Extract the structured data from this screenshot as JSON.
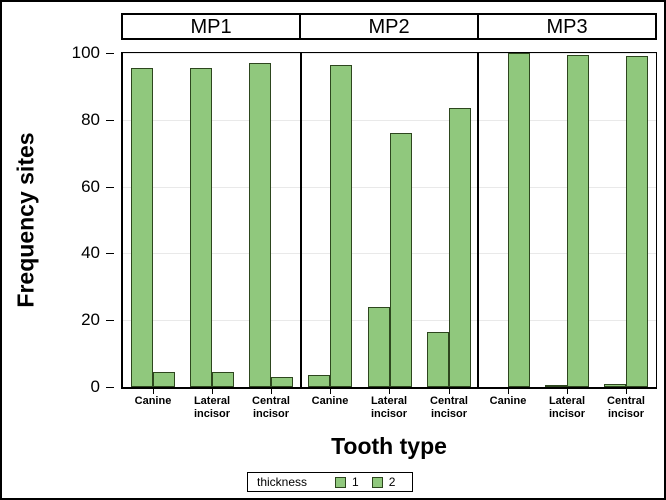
{
  "chart_data": {
    "type": "bar",
    "title": "",
    "xlabel": "Tooth type",
    "ylabel": "Frequency sites",
    "ylim": [
      0,
      100
    ],
    "yticks": [
      0,
      20,
      40,
      60,
      80,
      100
    ],
    "grid": true,
    "legend": {
      "title": "thickness",
      "entries": [
        "1",
        "2"
      ],
      "position": "bottom"
    },
    "categories": [
      "Canine",
      "Lateral incisor",
      "Central incisor"
    ],
    "panels": [
      {
        "label": "MP1",
        "series": [
          {
            "name": "1",
            "values": [
              95.5,
              95.5,
              97
            ]
          },
          {
            "name": "2",
            "values": [
              4.5,
              4.5,
              3
            ]
          }
        ]
      },
      {
        "label": "MP2",
        "series": [
          {
            "name": "1",
            "values": [
              3.5,
              24,
              16.5
            ]
          },
          {
            "name": "2",
            "values": [
              96.5,
              76,
              83.5
            ]
          }
        ]
      },
      {
        "label": "MP3",
        "series": [
          {
            "name": "1",
            "values": [
              0,
              0.5,
              1
            ]
          },
          {
            "name": "2",
            "values": [
              100,
              99.5,
              99
            ]
          }
        ]
      }
    ],
    "colors": {
      "bar_fill": "#90C87D",
      "bar_border": "#2D461E",
      "gridline": "#E9E9E9",
      "axis": "#000000"
    }
  }
}
